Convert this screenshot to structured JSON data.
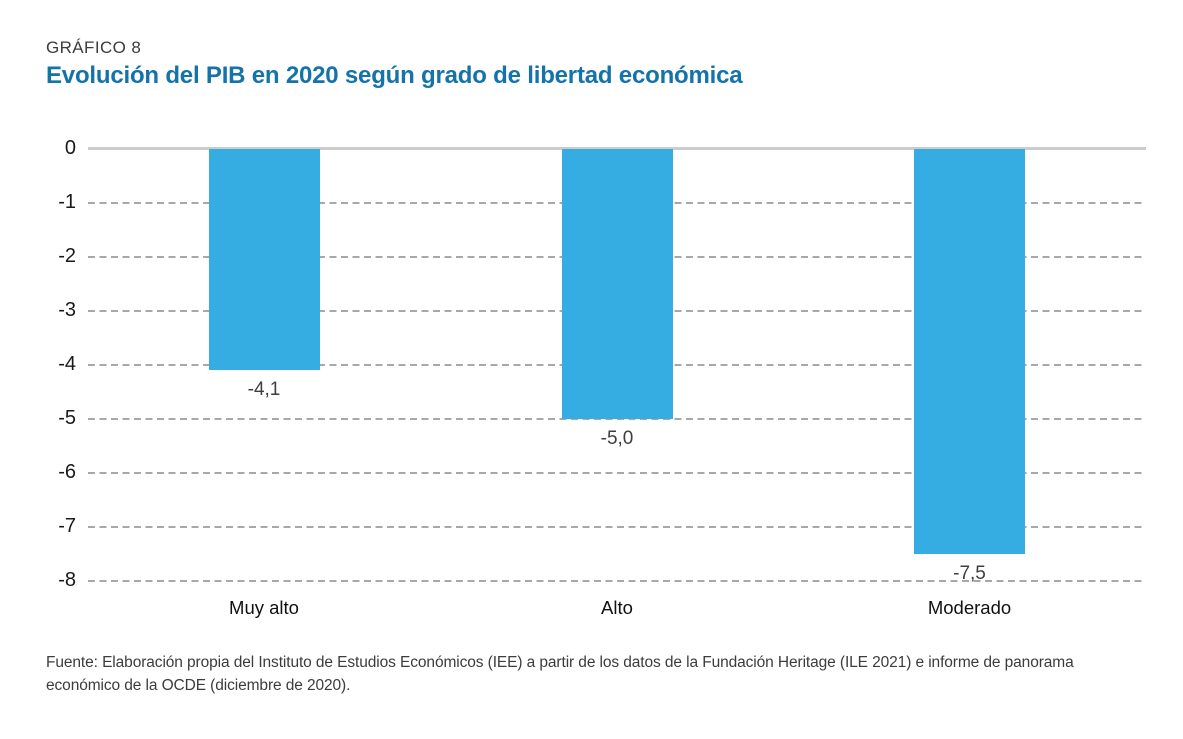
{
  "header": {
    "kicker": "GRÁFICO 8",
    "title": "Evolución del PIB en 2020 según grado de libertad económica"
  },
  "footer": {
    "source": "Fuente: Elaboración propia del Instituto de Estudios Económicos (IEE) a partir de los datos de la Fundación Heritage (ILE 2021) e informe de panorama económico de la OCDE (diciembre de 2020)."
  },
  "colors": {
    "bar": "#35ADE2",
    "title": "#1473A8",
    "kicker": "#3C3C3B",
    "grid_dashed": "#A8A8A8",
    "grid_zero": "#CCCCCC",
    "value_label": "#3F3F3F",
    "category_label": "#111111",
    "source_text": "#3C3C3B"
  },
  "chart_data": {
    "type": "bar",
    "title": "Evolución del PIB en 2020 según grado de libertad económica",
    "categories": [
      "Muy alto",
      "Alto",
      "Moderado"
    ],
    "values": [
      -4.1,
      -5.0,
      -7.5
    ],
    "value_labels": [
      "-4,1",
      "-5,0",
      "-7,5"
    ],
    "xlabel": "",
    "ylabel": "",
    "ylim": [
      0,
      -8
    ],
    "yticks": [
      0,
      -1,
      -2,
      -3,
      -4,
      -5,
      -6,
      -7,
      -8
    ],
    "ytick_labels": [
      "0",
      "-1",
      "-2",
      "-3",
      "-4",
      "-5",
      "-6",
      "-7",
      "-8"
    ],
    "grid": "horizontal-dashed, zero line solid",
    "legend": "none",
    "bar_color": "#35ADE2"
  }
}
